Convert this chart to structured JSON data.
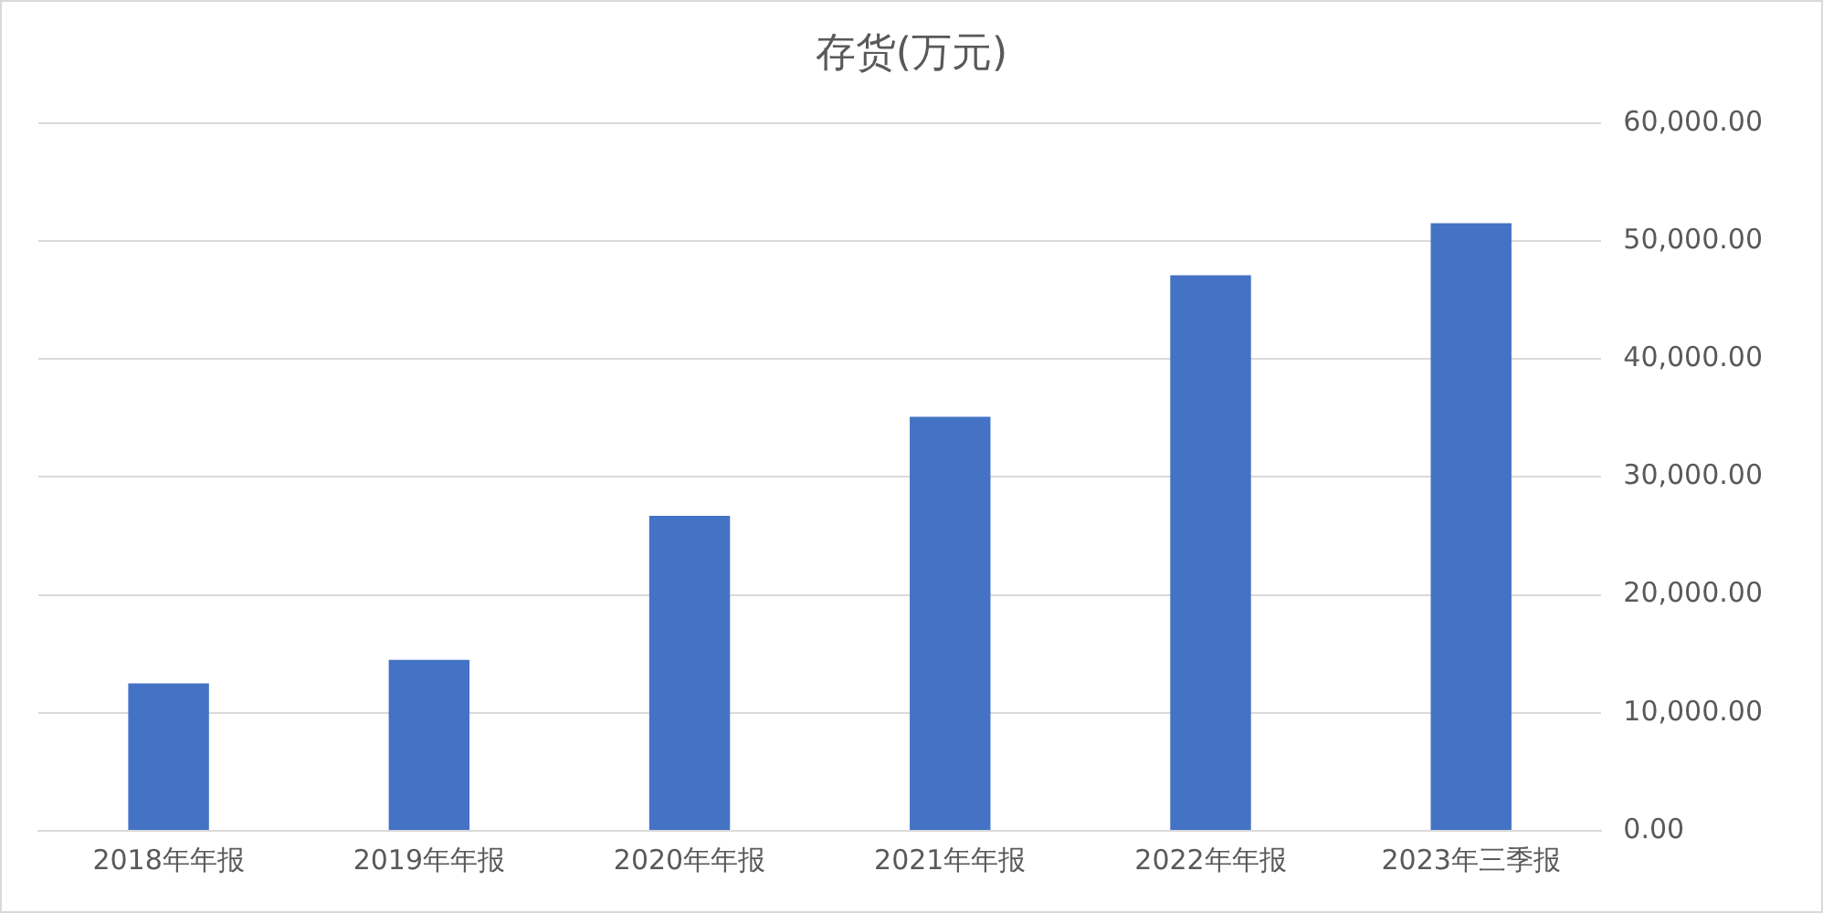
{
  "chart_data": {
    "type": "bar",
    "title": "存货(万元)",
    "categories": [
      "2018年年报",
      "2019年年报",
      "2020年年报",
      "2021年年报",
      "2022年年报",
      "2023年三季报"
    ],
    "values": [
      12500,
      14500,
      26700,
      35100,
      47100,
      51500
    ],
    "color": "#4472c4",
    "ylim": [
      0,
      60000
    ],
    "yticks": [
      {
        "value": 0,
        "label": "0.00"
      },
      {
        "value": 10000,
        "label": "10,000.00"
      },
      {
        "value": 20000,
        "label": "20,000.00"
      },
      {
        "value": 30000,
        "label": "30,000.00"
      },
      {
        "value": 40000,
        "label": "40,000.00"
      },
      {
        "value": 50000,
        "label": "50,000.00"
      },
      {
        "value": 60000,
        "label": "60,000.00"
      }
    ],
    "grid": "y"
  }
}
